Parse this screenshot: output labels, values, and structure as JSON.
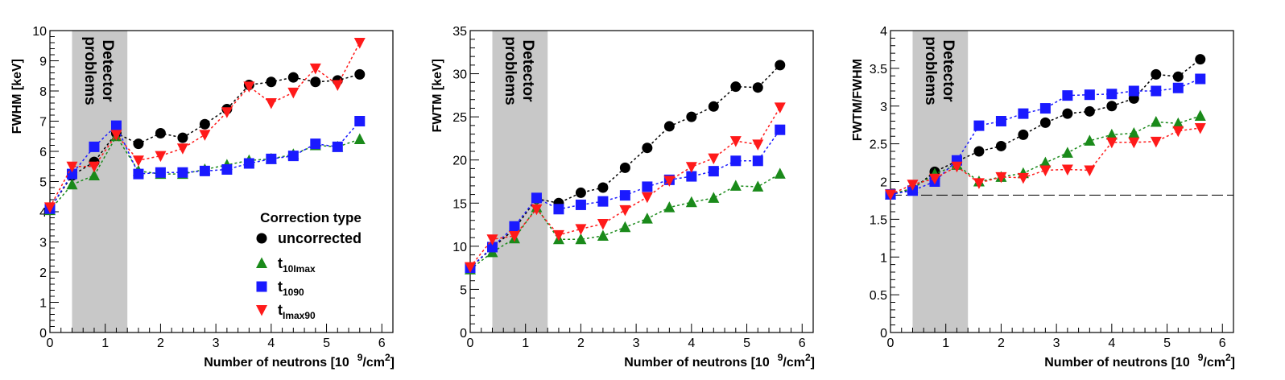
{
  "band_label": [
    "Detector",
    "problems"
  ],
  "legend": {
    "title": "Correction type",
    "entries": [
      {
        "series": "uncorrected",
        "main": "uncorrected",
        "sub": ""
      },
      {
        "series": "t10Imax",
        "main": "t",
        "sub": "10Imax"
      },
      {
        "series": "t1090",
        "main": "t",
        "sub": "1090"
      },
      {
        "series": "tImax90",
        "main": "t",
        "sub": "Imax90"
      }
    ]
  },
  "colors": {
    "uncorrected": "#000000",
    "t10Imax": "#1a8a1a",
    "t1090": "#1a1aff",
    "tImax90": "#ff1a1a",
    "band": "#c8c8c8"
  },
  "markers": {
    "uncorrected": "circle",
    "t10Imax": "triangle-up",
    "t1090": "square",
    "tImax90": "triangle-down"
  },
  "chart_data": [
    {
      "type": "line",
      "ylabel": "FWHM [keV]",
      "xlabel_main": "Number of neutrons [10",
      "xlabel_sup": "9",
      "xlabel_end": "/cm",
      "xlabel_sup2": "2",
      "xlabel_close": "]",
      "xlim": [
        0,
        6.2
      ],
      "ylim": [
        0,
        10
      ],
      "xticks": [
        "0",
        "1",
        "2",
        "3",
        "4",
        "5",
        "6"
      ],
      "yticks": [
        "0",
        "1",
        "2",
        "3",
        "4",
        "5",
        "6",
        "7",
        "8",
        "9",
        "10"
      ],
      "shaded_region": [
        0.4,
        1.4
      ],
      "x": [
        0,
        0.4,
        0.8,
        1.2,
        1.6,
        2.0,
        2.4,
        2.8,
        3.2,
        3.6,
        4.0,
        4.4,
        4.8,
        5.2,
        5.6
      ],
      "series": [
        {
          "name": "uncorrected",
          "values": [
            4.1,
            5.2,
            5.65,
            6.6,
            6.25,
            6.6,
            6.45,
            6.9,
            7.4,
            8.2,
            8.3,
            8.45,
            8.3,
            8.35,
            8.55
          ]
        },
        {
          "name": "t10Imax",
          "values": [
            4.05,
            4.9,
            5.2,
            6.5,
            5.35,
            5.25,
            5.25,
            5.4,
            5.55,
            5.7,
            5.75,
            5.9,
            6.2,
            6.15,
            6.4
          ]
        },
        {
          "name": "t1090",
          "values": [
            4.1,
            5.25,
            6.15,
            6.85,
            5.25,
            5.3,
            5.3,
            5.35,
            5.4,
            5.6,
            5.75,
            5.85,
            6.25,
            6.15,
            7.0
          ]
        },
        {
          "name": "tImax90",
          "values": [
            4.15,
            5.5,
            5.5,
            6.55,
            5.7,
            5.85,
            6.1,
            6.55,
            7.3,
            8.15,
            7.6,
            7.95,
            8.75,
            8.2,
            9.6
          ]
        }
      ]
    },
    {
      "type": "line",
      "ylabel": "FWTM [keV]",
      "xlabel_main": "Number of neutrons [10",
      "xlabel_sup": "9",
      "xlabel_end": "/cm",
      "xlabel_sup2": "2",
      "xlabel_close": "]",
      "xlim": [
        0,
        6.2
      ],
      "ylim": [
        0,
        35
      ],
      "xticks": [
        "0",
        "1",
        "2",
        "3",
        "4",
        "5",
        "6"
      ],
      "yticks": [
        "0",
        "5",
        "10",
        "15",
        "20",
        "25",
        "30",
        "35"
      ],
      "shaded_region": [
        0.4,
        1.4
      ],
      "x": [
        0,
        0.4,
        0.8,
        1.2,
        1.6,
        2.0,
        2.4,
        2.8,
        3.2,
        3.6,
        4.0,
        4.4,
        4.8,
        5.2,
        5.6
      ],
      "series": [
        {
          "name": "uncorrected",
          "values": [
            7.5,
            9.8,
            12.0,
            15.5,
            15.0,
            16.2,
            16.8,
            19.1,
            21.4,
            23.9,
            25.0,
            26.2,
            28.5,
            28.4,
            31.0
          ]
        },
        {
          "name": "t10Imax",
          "values": [
            7.3,
            9.3,
            10.9,
            14.5,
            10.8,
            10.8,
            11.2,
            12.2,
            13.2,
            14.5,
            15.1,
            15.6,
            17.0,
            16.9,
            18.4
          ]
        },
        {
          "name": "t1090",
          "values": [
            7.5,
            9.9,
            12.3,
            15.6,
            14.3,
            14.8,
            15.2,
            15.9,
            16.9,
            17.7,
            18.1,
            18.7,
            19.9,
            19.9,
            23.5
          ]
        },
        {
          "name": "tImax90",
          "values": [
            7.6,
            10.8,
            11.2,
            14.3,
            11.3,
            12.0,
            12.6,
            14.2,
            15.7,
            17.6,
            19.2,
            20.2,
            22.2,
            21.8,
            26.1
          ]
        }
      ]
    },
    {
      "type": "line",
      "ylabel": "FWTM/FWHM",
      "xlabel_main": "Number of neutrons [10",
      "xlabel_sup": "9",
      "xlabel_end": "/cm",
      "xlabel_sup2": "2",
      "xlabel_close": "]",
      "xlim": [
        0,
        6.2
      ],
      "ylim": [
        0,
        4
      ],
      "xticks": [
        "0",
        "1",
        "2",
        "3",
        "4",
        "5",
        "6"
      ],
      "yticks": [
        "0",
        "0.5",
        "1",
        "1.5",
        "2",
        "2.5",
        "3",
        "3.5",
        "4"
      ],
      "shaded_region": [
        0.4,
        1.4
      ],
      "reference_line": 1.82,
      "x": [
        0,
        0.4,
        0.8,
        1.2,
        1.6,
        2.0,
        2.4,
        2.8,
        3.2,
        3.6,
        4.0,
        4.4,
        4.8,
        5.2,
        5.6
      ],
      "series": [
        {
          "name": "uncorrected",
          "values": [
            1.83,
            1.9,
            2.13,
            2.27,
            2.4,
            2.47,
            2.62,
            2.78,
            2.9,
            2.93,
            3.0,
            3.1,
            3.42,
            3.39,
            3.62
          ]
        },
        {
          "name": "t10Imax",
          "values": [
            1.83,
            1.91,
            2.1,
            2.22,
            2.0,
            2.06,
            2.11,
            2.25,
            2.38,
            2.54,
            2.62,
            2.64,
            2.79,
            2.77,
            2.87
          ]
        },
        {
          "name": "t1090",
          "values": [
            1.83,
            1.88,
            2.0,
            2.28,
            2.74,
            2.8,
            2.9,
            2.97,
            3.14,
            3.15,
            3.16,
            3.2,
            3.2,
            3.24,
            3.36
          ]
        },
        {
          "name": "tImax90",
          "values": [
            1.83,
            1.96,
            2.04,
            2.2,
            1.98,
            2.06,
            2.05,
            2.15,
            2.16,
            2.15,
            2.52,
            2.52,
            2.53,
            2.67,
            2.71
          ]
        }
      ]
    }
  ]
}
